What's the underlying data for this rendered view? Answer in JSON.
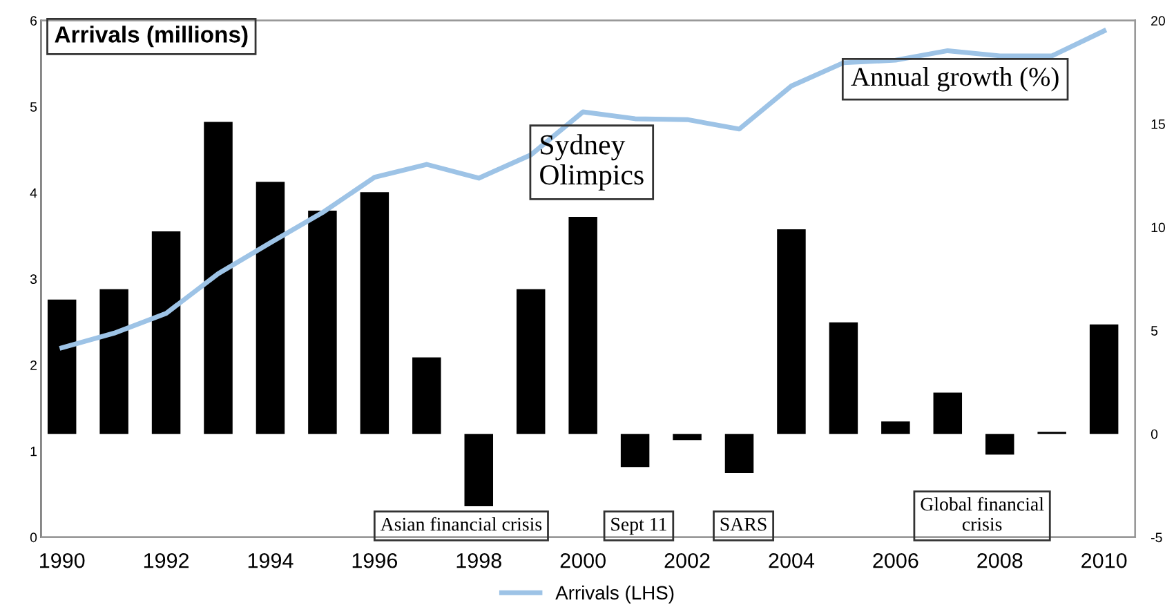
{
  "chart_data": {
    "type": "bar",
    "x": [
      1990,
      1991,
      1992,
      1993,
      1994,
      1995,
      1996,
      1997,
      1998,
      1999,
      2000,
      2001,
      2002,
      2003,
      2004,
      2005,
      2006,
      2007,
      2008,
      2009,
      2010
    ],
    "xlim": [
      1989.6,
      2010.6
    ],
    "xticks": [
      1990,
      1992,
      1994,
      1996,
      1998,
      2000,
      2002,
      2004,
      2006,
      2008,
      2010
    ],
    "ylabel": "Arrivals (millions)",
    "y2label": "Annual growth (%)",
    "ylim": [
      0,
      6
    ],
    "yticks": [
      0,
      1,
      2,
      3,
      4,
      5,
      6
    ],
    "y2lim": [
      -5,
      20
    ],
    "y2ticks": [
      -5,
      0,
      5,
      10,
      15,
      20
    ],
    "series": [
      {
        "axis": "y2",
        "color": "#000000",
        "values": [
          6.5,
          7.0,
          9.8,
          15.1,
          12.2,
          10.8,
          11.7,
          3.7,
          -3.5,
          7.0,
          10.5,
          -1.6,
          -0.3,
          -1.9,
          9.9,
          5.4,
          0.6,
          2.0,
          -1.0,
          0.1,
          5.3
        ]
      },
      {
        "type": "line",
        "axis": "y",
        "name": "Arrivals (LHS)",
        "color": "#9dc3e6",
        "values": [
          2.2,
          2.37,
          2.6,
          3.06,
          3.42,
          3.77,
          4.18,
          4.33,
          4.17,
          4.44,
          4.94,
          4.86,
          4.85,
          4.74,
          5.24,
          5.51,
          5.54,
          5.65,
          5.59,
          5.59,
          5.88
        ]
      }
    ],
    "annotations": [
      "Sydney\nOlimpics",
      "Asian financial crisis",
      "Sept 11",
      "SARS",
      "Global financial\ncrisis"
    ],
    "legend": "bottom",
    "grid": false
  }
}
